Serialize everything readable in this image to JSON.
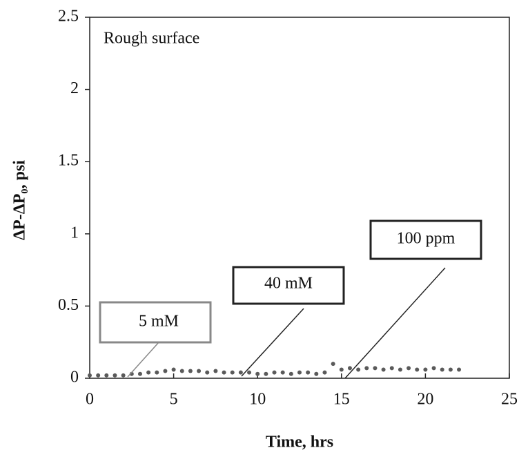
{
  "chart_data": {
    "type": "scatter",
    "annotations": [
      "Rough surface",
      "5 mM",
      "40 mM",
      "100 ppm"
    ],
    "x_label": "Time, hrs",
    "y_label": "ΔP-ΔP₀, psi",
    "x": [
      0,
      0.5,
      1,
      1.5,
      2,
      2.5,
      3,
      3.5,
      4,
      4.5,
      5,
      5.5,
      6,
      6.5,
      7,
      7.5,
      8,
      8.5,
      9,
      9.5,
      10,
      10.5,
      11,
      11.5,
      12,
      12.5,
      13,
      13.5,
      14,
      14.5,
      15,
      15.5,
      16,
      16.5,
      17,
      17.5,
      18,
      18.5,
      19,
      19.5,
      20,
      20.5,
      21,
      21.5,
      22
    ],
    "values": [
      0.02,
      0.02,
      0.02,
      0.02,
      0.02,
      0.03,
      0.03,
      0.04,
      0.04,
      0.05,
      0.06,
      0.05,
      0.05,
      0.05,
      0.04,
      0.05,
      0.04,
      0.04,
      0.04,
      0.04,
      0.03,
      0.03,
      0.04,
      0.04,
      0.03,
      0.04,
      0.04,
      0.03,
      0.04,
      0.1,
      0.06,
      0.07,
      0.06,
      0.07,
      0.07,
      0.06,
      0.07,
      0.06,
      0.07,
      0.06,
      0.06,
      0.07,
      0.06,
      0.06,
      0.06
    ],
    "color": "#5a5a5a",
    "xlim": [
      0,
      25
    ],
    "xticks": [
      0,
      5,
      10,
      15,
      20,
      25
    ],
    "ylim": [
      0,
      2.5
    ],
    "yticks": [
      0,
      0.5,
      1,
      1.5,
      2,
      2.5
    ],
    "grid": false
  }
}
